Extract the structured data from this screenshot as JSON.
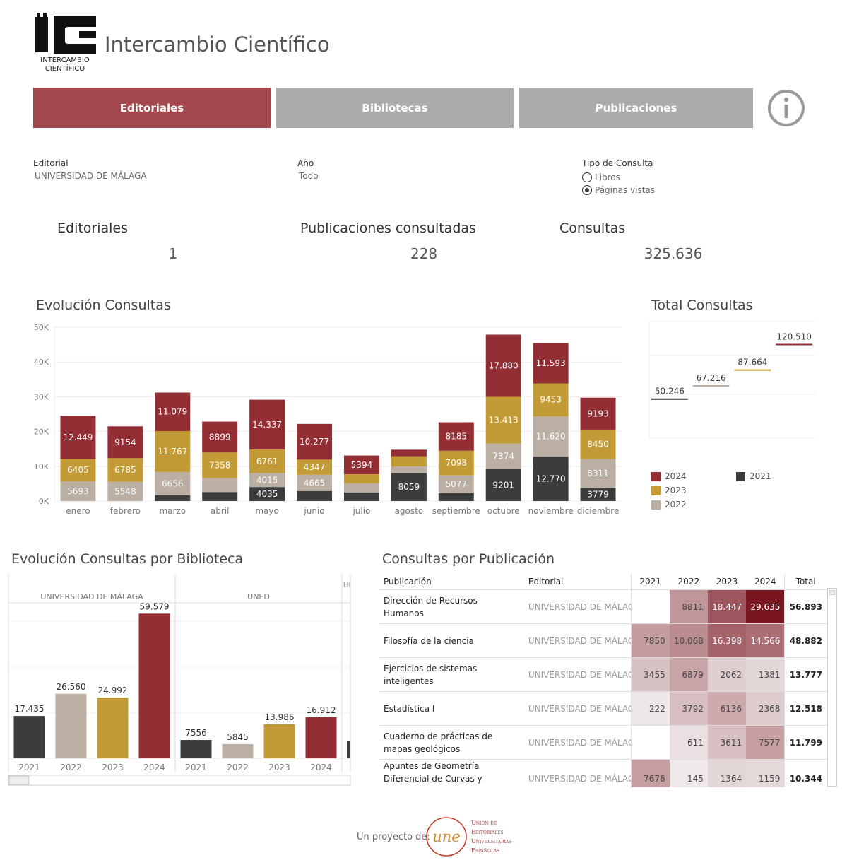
{
  "header": {
    "logo_letters": "IC",
    "logo_caption_1": "INTERCAMBIO",
    "logo_caption_2": "CIENTÍFICO",
    "app_title": "Intercambio Científico"
  },
  "tabs": [
    {
      "label": "Editoriales",
      "active": true
    },
    {
      "label": "Bibliotecas",
      "active": false
    },
    {
      "label": "Publicaciones",
      "active": false
    }
  ],
  "filters": {
    "editorial_label": "Editorial",
    "editorial_value": "UNIVERSIDAD DE MÁLAGA",
    "anio_label": "Año",
    "anio_value": "Todo",
    "tipo_label": "Tipo de Consulta",
    "tipo_options": [
      {
        "label": "Libros",
        "selected": false
      },
      {
        "label": "Páginas vistas",
        "selected": true
      }
    ]
  },
  "kpis": {
    "editoriales_label": "Editoriales",
    "editoriales_value": "1",
    "publicaciones_label": "Publicaciones consultadas",
    "publicaciones_value": "228",
    "consultas_label": "Consultas",
    "consultas_value": "325.636"
  },
  "colors": {
    "2024": "#932f34",
    "2023": "#c39b36",
    "2022": "#bbafa3",
    "2021": "#3c3c3c",
    "tab_active": "#a2474b",
    "tab_inactive": "#ababab"
  },
  "chart_data": [
    {
      "type": "bar",
      "stacked": true,
      "title": "Evolución Consultas",
      "categories": [
        "enero",
        "febrero",
        "marzo",
        "abril",
        "mayo",
        "junio",
        "julio",
        "agosto",
        "septiembre",
        "octubre",
        "noviembre",
        "diciembre"
      ],
      "ylim": [
        0,
        50000
      ],
      "yticks": [
        0,
        10000,
        20000,
        30000,
        40000,
        50000
      ],
      "ytick_labels": [
        "0K",
        "10K",
        "20K",
        "30K",
        "40K",
        "50K"
      ],
      "series": [
        {
          "name": "2021",
          "values": [
            0,
            0,
            1700,
            2600,
            4035,
            2900,
            2500,
            8059,
            2300,
            9201,
            12770,
            3779
          ],
          "labels": [
            "",
            "",
            "",
            "",
            "4035",
            "",
            "",
            "8059",
            "",
            "9201",
            "12.770",
            "3779"
          ]
        },
        {
          "name": "2022",
          "values": [
            5693,
            5548,
            6656,
            4000,
            4015,
            4665,
            2600,
            1900,
            5077,
            7374,
            11620,
            8311
          ],
          "labels": [
            "5693",
            "5548",
            "6656",
            "",
            "4015",
            "4665",
            "",
            "",
            "5077",
            "7374",
            "11.620",
            "8311"
          ]
        },
        {
          "name": "2023",
          "values": [
            6405,
            6785,
            11767,
            7358,
            6761,
            4347,
            2600,
            2900,
            7098,
            13413,
            9453,
            8450
          ],
          "labels": [
            "6405",
            "6785",
            "11.767",
            "7358",
            "6761",
            "4347",
            "",
            "",
            "7098",
            "13.413",
            "9453",
            "8450"
          ]
        },
        {
          "name": "2024",
          "values": [
            12449,
            9154,
            11079,
            8899,
            14337,
            10277,
            5394,
            1900,
            8185,
            17880,
            11593,
            9193
          ],
          "labels": [
            "12.449",
            "9154",
            "11.079",
            "8899",
            "14.337",
            "10.277",
            "5394",
            "",
            "8185",
            "17.880",
            "11.593",
            "9193"
          ]
        }
      ]
    },
    {
      "type": "line",
      "title": "Total Consultas",
      "categories": [
        "2021",
        "2022",
        "2023",
        "2024"
      ],
      "values": [
        50246,
        67216,
        87664,
        120510
      ],
      "labels": [
        "50.246",
        "67.216",
        "87.664",
        "120.510"
      ],
      "ylim": [
        0,
        150000
      ],
      "legend": [
        "2024",
        "2023",
        "2022",
        "2021"
      ]
    },
    {
      "type": "bar",
      "title": "Evolución Consultas por Biblioteca",
      "panels": [
        {
          "name": "UNIVERSIDAD DE MÁLAGA",
          "categories": [
            "2021",
            "2022",
            "2023",
            "2024"
          ],
          "values": [
            17435,
            26560,
            24992,
            59579
          ],
          "labels": [
            "17.435",
            "26.560",
            "24.992",
            "59.579"
          ]
        },
        {
          "name": "UNED",
          "categories": [
            "2021",
            "2022",
            "2023",
            "2024"
          ],
          "values": [
            7556,
            5845,
            13986,
            16912
          ],
          "labels": [
            "7556",
            "5845",
            "13.986",
            "16.912"
          ]
        },
        {
          "name": "UI",
          "categories": [],
          "values": [],
          "labels": []
        }
      ],
      "ylim": [
        0,
        62000
      ]
    },
    {
      "type": "table",
      "title": "Consultas por Publicación",
      "columns": [
        "Publicación",
        "Editorial",
        "2021",
        "2022",
        "2023",
        "2024",
        "Total"
      ],
      "rows": [
        {
          "pub": "Dirección de Recursos Humanos",
          "editorial": "UNIVERSIDAD DE MÁLAGA",
          "v2021": "",
          "v2022": "8811",
          "v2023": "18.447",
          "v2024": "29.635",
          "total": "56.893",
          "n": [
            0,
            8811,
            18447,
            29635
          ]
        },
        {
          "pub": "Filosofía de la ciencia",
          "editorial": "UNIVERSIDAD DE MÁLAGA",
          "v2021": "7850",
          "v2022": "10.068",
          "v2023": "16.398",
          "v2024": "14.566",
          "total": "48.882",
          "n": [
            7850,
            10068,
            16398,
            14566
          ]
        },
        {
          "pub": "Ejercicios de sistemas inteligentes",
          "editorial": "UNIVERSIDAD DE MÁLAGA",
          "v2021": "3455",
          "v2022": "6879",
          "v2023": "2062",
          "v2024": "1381",
          "total": "13.777",
          "n": [
            3455,
            6879,
            2062,
            1381
          ]
        },
        {
          "pub": "Estadística I",
          "editorial": "UNIVERSIDAD DE MÁLAGA",
          "v2021": "222",
          "v2022": "3792",
          "v2023": "6136",
          "v2024": "2368",
          "total": "12.518",
          "n": [
            222,
            3792,
            6136,
            2368
          ]
        },
        {
          "pub": "Cuaderno de prácticas de mapas geológicos",
          "editorial": "UNIVERSIDAD DE MÁLAGA",
          "v2021": "",
          "v2022": "611",
          "v2023": "3611",
          "v2024": "7577",
          "total": "11.799",
          "n": [
            0,
            611,
            3611,
            7577
          ]
        },
        {
          "pub": "Apuntes de Geometría Diferencial de Curvas y Superficies",
          "editorial": "UNIVERSIDAD DE MÁLAGA",
          "v2021": "7676",
          "v2022": "145",
          "v2023": "1364",
          "v2024": "1159",
          "total": "10.344",
          "n": [
            7676,
            145,
            1364,
            1159
          ]
        }
      ]
    }
  ],
  "footer": {
    "text": "Un proyecto de:",
    "une_logo": "une",
    "une_line1": "Unión de",
    "une_line2": "Editoriales",
    "une_line3": "Universitarias",
    "une_line4": "Españolas"
  }
}
